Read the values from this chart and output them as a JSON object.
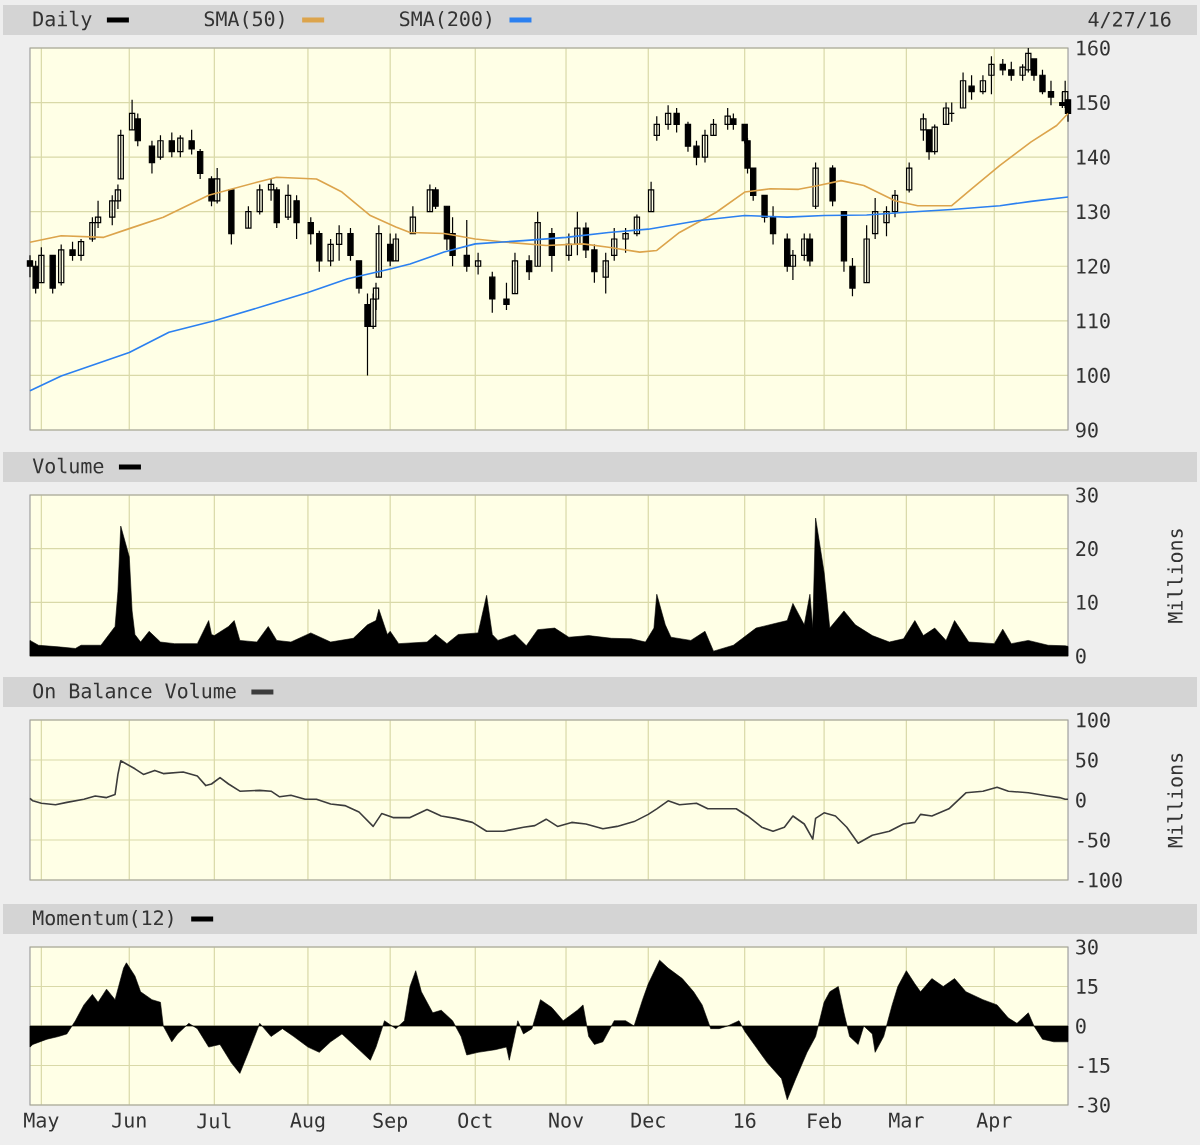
{
  "chart_data": [
    {
      "type": "candlestick",
      "annotations": [
        "4/27/16"
      ],
      "xlim": [
        "2015-04-27",
        "2016-04-27"
      ],
      "xticks": [
        {
          "value": "2015-05-01",
          "label": null
        },
        {
          "value": "2015-06-01",
          "label": null
        },
        {
          "value": "2015-07-01",
          "label": null
        },
        {
          "value": "2015-08-03",
          "label": null
        },
        {
          "value": "2015-09-01",
          "label": null
        },
        {
          "value": "2015-10-01",
          "label": null
        },
        {
          "value": "2015-11-02",
          "label": null
        },
        {
          "value": "2015-12-01",
          "label": null
        },
        {
          "value": "2016-01-04",
          "label": null
        },
        {
          "value": "2016-02-01",
          "label": null
        },
        {
          "value": "2016-03-01",
          "label": null
        },
        {
          "value": "2016-04-01",
          "label": null
        }
      ],
      "ylim": [
        90,
        160
      ],
      "yticks": [
        90,
        100,
        110,
        120,
        130,
        140,
        150,
        160
      ],
      "grid": true,
      "legend": "top left",
      "tick_labels": "y",
      "series": [
        {
          "name": "Daily",
          "type": "candlestick",
          "color": "#000000",
          "x": [
            "2015-04-27",
            "2015-04-29",
            "2015-05-01",
            "2015-05-05",
            "2015-05-08",
            "2015-05-12",
            "2015-05-15",
            "2015-05-19",
            "2015-05-21",
            "2015-05-26",
            "2015-05-28",
            "2015-05-29",
            "2015-06-02",
            "2015-06-04",
            "2015-06-09",
            "2015-06-12",
            "2015-06-16",
            "2015-06-19",
            "2015-06-23",
            "2015-06-26",
            "2015-06-30",
            "2015-07-02",
            "2015-07-07",
            "2015-07-13",
            "2015-07-17",
            "2015-07-21",
            "2015-07-23",
            "2015-07-27",
            "2015-07-30",
            "2015-08-04",
            "2015-08-07",
            "2015-08-11",
            "2015-08-14",
            "2015-08-18",
            "2015-08-21",
            "2015-08-24",
            "2015-08-26",
            "2015-08-27",
            "2015-08-28",
            "2015-09-01",
            "2015-09-03",
            "2015-09-09",
            "2015-09-15",
            "2015-09-17",
            "2015-09-21",
            "2015-09-23",
            "2015-09-28",
            "2015-10-02",
            "2015-10-07",
            "2015-10-12",
            "2015-10-15",
            "2015-10-20",
            "2015-10-23",
            "2015-10-28",
            "2015-11-03",
            "2015-11-06",
            "2015-11-09",
            "2015-11-12",
            "2015-11-16",
            "2015-11-19",
            "2015-11-23",
            "2015-11-27",
            "2015-12-02",
            "2015-12-04",
            "2015-12-08",
            "2015-12-11",
            "2015-12-15",
            "2015-12-18",
            "2015-12-21",
            "2015-12-24",
            "2015-12-29",
            "2015-12-31",
            "2016-01-04",
            "2016-01-05",
            "2016-01-07",
            "2016-01-11",
            "2016-01-14",
            "2016-01-19",
            "2016-01-21",
            "2016-01-25",
            "2016-01-27",
            "2016-01-29",
            "2016-02-04",
            "2016-02-08",
            "2016-02-11",
            "2016-02-16",
            "2016-02-19",
            "2016-02-23",
            "2016-02-26",
            "2016-03-02",
            "2016-03-07",
            "2016-03-09",
            "2016-03-11",
            "2016-03-15",
            "2016-03-17",
            "2016-03-21",
            "2016-03-24",
            "2016-03-28",
            "2016-03-31",
            "2016-04-04",
            "2016-04-07",
            "2016-04-11",
            "2016-04-13",
            "2016-04-15",
            "2016-04-18",
            "2016-04-21",
            "2016-04-25",
            "2016-04-26",
            "2016-04-27"
          ],
          "ohlc": [
            [
              121,
              122,
              118,
              120
            ],
            [
              120,
              121,
              115,
              116
            ],
            [
              117,
              123.5,
              117,
              122
            ],
            [
              122,
              122,
              115,
              116
            ],
            [
              117,
              124,
              116.5,
              123
            ],
            [
              123,
              124.5,
              121,
              122
            ],
            [
              122,
              125,
              121,
              124.5
            ],
            [
              125,
              129,
              124.5,
              128
            ],
            [
              128,
              132,
              127,
              129
            ],
            [
              129,
              133,
              127.5,
              132
            ],
            [
              132,
              135,
              130.5,
              134
            ],
            [
              136,
              145,
              136,
              144
            ],
            [
              145,
              150.5,
              145,
              148
            ],
            [
              147,
              148,
              142,
              143
            ],
            [
              142,
              143,
              137,
              139
            ],
            [
              140,
              144,
              139.5,
              143
            ],
            [
              143,
              144.5,
              140,
              141
            ],
            [
              141,
              144,
              140,
              143.5
            ],
            [
              143,
              145,
              140.5,
              141.5
            ],
            [
              141,
              141.5,
              136,
              137
            ],
            [
              136,
              136.5,
              131,
              132
            ],
            [
              132,
              138,
              131.5,
              136
            ],
            [
              134,
              134,
              124,
              126
            ],
            [
              127,
              131,
              127,
              130
            ],
            [
              130,
              135,
              129.5,
              134
            ],
            [
              134,
              136,
              132,
              135
            ],
            [
              134,
              134.5,
              127,
              128
            ],
            [
              129,
              135,
              128.5,
              133
            ],
            [
              132,
              133,
              125,
              128
            ],
            [
              128,
              129,
              124,
              126
            ],
            [
              126,
              126.5,
              119,
              121
            ],
            [
              121,
              125,
              120,
              124
            ],
            [
              124,
              127.5,
              121,
              126
            ],
            [
              126,
              127,
              121,
              122
            ],
            [
              121,
              121,
              115,
              116
            ],
            [
              113,
              115,
              100,
              109
            ],
            [
              109,
              115,
              108.5,
              114
            ],
            [
              114,
              117,
              112,
              116
            ],
            [
              118,
              127.5,
              118,
              126
            ],
            [
              124,
              126,
              120,
              121
            ],
            [
              121,
              126,
              121,
              125
            ],
            [
              126,
              131,
              126,
              129
            ],
            [
              130,
              135,
              130,
              134
            ],
            [
              134,
              134.5,
              130.5,
              131
            ],
            [
              131,
              131,
              123,
              125
            ],
            [
              126,
              129,
              120,
              122
            ],
            [
              122,
              128.5,
              119,
              120
            ],
            [
              120,
              122.5,
              118.5,
              121
            ],
            [
              118,
              119,
              111.5,
              114
            ],
            [
              114,
              117,
              112,
              113
            ],
            [
              115,
              122.5,
              115,
              121
            ],
            [
              121,
              122,
              117.5,
              119
            ],
            [
              120,
              130,
              120,
              128
            ],
            [
              126,
              127,
              119,
              122
            ],
            [
              122,
              126,
              121,
              124
            ],
            [
              124,
              130,
              122,
              127
            ],
            [
              127,
              128,
              121.5,
              123
            ],
            [
              123,
              124,
              117,
              119
            ],
            [
              118,
              122.5,
              115,
              121
            ],
            [
              122,
              127,
              121,
              125
            ],
            [
              125,
              127,
              122.5,
              126
            ],
            [
              126,
              129.5,
              125.5,
              129
            ],
            [
              130,
              135.5,
              130,
              134
            ],
            [
              144,
              147.5,
              143,
              146
            ],
            [
              146,
              149.5,
              145,
              148
            ],
            [
              148,
              149,
              144.5,
              146
            ],
            [
              146,
              146.5,
              141,
              142
            ],
            [
              142,
              143,
              138.5,
              140
            ],
            [
              140,
              145,
              139,
              144
            ],
            [
              144,
              147,
              144,
              146
            ],
            [
              146,
              149,
              145,
              147.5
            ],
            [
              147,
              148,
              145,
              146
            ],
            [
              146,
              146,
              142.5,
              143
            ],
            [
              143,
              143.5,
              137,
              138
            ],
            [
              138,
              138,
              132,
              133
            ],
            [
              133,
              133,
              128,
              129
            ],
            [
              129,
              131,
              124,
              126
            ],
            [
              125,
              126,
              119,
              120
            ],
            [
              120,
              123,
              117.5,
              122
            ],
            [
              122,
              126,
              121,
              125
            ],
            [
              125,
              126,
              120,
              121
            ],
            [
              131,
              139,
              130.5,
              138
            ],
            [
              138,
              138.5,
              131,
              132
            ],
            [
              130,
              130,
              119,
              121
            ],
            [
              120,
              121.5,
              114.5,
              116
            ],
            [
              117,
              127.5,
              117,
              125
            ],
            [
              126,
              132.5,
              125,
              130
            ],
            [
              128,
              131,
              125.5,
              130
            ],
            [
              130,
              134,
              129,
              133
            ],
            [
              134,
              139,
              133.5,
              138
            ],
            [
              145,
              148,
              143,
              147
            ],
            [
              145,
              145,
              139.5,
              141
            ],
            [
              141,
              146,
              140.5,
              145.5
            ],
            [
              146,
              150,
              146,
              149
            ],
            [
              148,
              150,
              146.5,
              148
            ],
            [
              149,
              155.5,
              149,
              154
            ],
            [
              153,
              155,
              150.5,
              152
            ],
            [
              152,
              155,
              151.5,
              154
            ],
            [
              155,
              158.5,
              151.5,
              157
            ],
            [
              157,
              158,
              155,
              156
            ],
            [
              156,
              157.5,
              154,
              155
            ],
            [
              155,
              157,
              154,
              156.5
            ],
            [
              156,
              160,
              155.5,
              159
            ],
            [
              158,
              158,
              154,
              155
            ],
            [
              155,
              156,
              151.5,
              152
            ],
            [
              152,
              154,
              149.5,
              151
            ],
            [
              150,
              152,
              149,
              149.5
            ],
            [
              150,
              154,
              149,
              152
            ],
            [
              150.5,
              150.5,
              146.5,
              148
            ]
          ]
        },
        {
          "name": "SMA(50)",
          "type": "line",
          "color": "#dca44c",
          "x": [
            "2015-04-27",
            "2015-05-08",
            "2015-05-23",
            "2015-06-01",
            "2015-06-13",
            "2015-06-29",
            "2015-07-16",
            "2015-07-23",
            "2015-08-06",
            "2015-08-15",
            "2015-08-25",
            "2015-09-03",
            "2015-09-08",
            "2015-09-20",
            "2015-10-01",
            "2015-10-12",
            "2015-10-26",
            "2015-11-08",
            "2015-11-17",
            "2015-11-28",
            "2015-12-04",
            "2015-12-12",
            "2015-12-25",
            "2016-01-04",
            "2016-01-13",
            "2016-01-23",
            "2016-01-30",
            "2016-02-07",
            "2016-02-15",
            "2016-02-26",
            "2016-03-05",
            "2016-03-17",
            "2016-03-24",
            "2016-04-03",
            "2016-04-14",
            "2016-04-23",
            "2016-04-27"
          ],
          "values": [
            124.4,
            125.6,
            125.3,
            126.9,
            129,
            133,
            135.4,
            136.3,
            136,
            133.6,
            129.3,
            127.2,
            126.2,
            126,
            125,
            124.4,
            123.8,
            124.1,
            123.5,
            122.6,
            122.9,
            126.2,
            129.9,
            133.6,
            134.2,
            134.1,
            134.8,
            135.7,
            134.8,
            132,
            131.1,
            131.1,
            134.2,
            138.5,
            142.8,
            145.8,
            148
          ]
        },
        {
          "name": "SMA(200)",
          "type": "line",
          "color": "#2b80f0",
          "x": [
            "2015-04-27",
            "2015-05-08",
            "2015-06-01",
            "2015-06-15",
            "2015-07-01",
            "2015-07-19",
            "2015-08-03",
            "2015-08-17",
            "2015-09-01",
            "2015-09-08",
            "2015-09-20",
            "2015-10-01",
            "2015-10-18",
            "2015-11-02",
            "2015-11-17",
            "2015-12-01",
            "2015-12-19",
            "2016-01-04",
            "2016-01-19",
            "2016-02-01",
            "2016-02-16",
            "2016-03-01",
            "2016-03-17",
            "2016-04-03",
            "2016-04-14",
            "2016-04-27"
          ],
          "values": [
            97.2,
            99.9,
            104.2,
            107.9,
            110,
            112.8,
            115.2,
            117.7,
            119.5,
            120.4,
            122.6,
            124.1,
            124.7,
            125.3,
            126.2,
            126.8,
            128.4,
            129.3,
            129,
            129.3,
            129.4,
            129.9,
            130.4,
            131.1,
            131.9,
            132.7
          ]
        }
      ]
    },
    {
      "type": "area",
      "xlim": [
        "2015-04-27",
        "2016-04-27"
      ],
      "xticks": [
        {
          "value": "2015-05-01",
          "label": null
        },
        {
          "value": "2015-06-01",
          "label": null
        },
        {
          "value": "2015-07-01",
          "label": null
        },
        {
          "value": "2015-08-03",
          "label": null
        },
        {
          "value": "2015-09-01",
          "label": null
        },
        {
          "value": "2015-10-01",
          "label": null
        },
        {
          "value": "2015-11-02",
          "label": null
        },
        {
          "value": "2015-12-01",
          "label": null
        },
        {
          "value": "2016-01-04",
          "label": null
        },
        {
          "value": "2016-02-01",
          "label": null
        },
        {
          "value": "2016-03-01",
          "label": null
        },
        {
          "value": "2016-04-01",
          "label": null
        }
      ],
      "ylim": [
        0,
        30
      ],
      "yticks": [
        0,
        10,
        20,
        30
      ],
      "ylabel": "Millions",
      "grid": true,
      "legend": "top left",
      "tick_labels": "y",
      "series": [
        {
          "name": "Volume",
          "color": "#000000",
          "x": [
            "2015-04-27",
            "2015-04-30",
            "2015-05-07",
            "2015-05-13",
            "2015-05-15",
            "2015-05-22",
            "2015-05-27",
            "2015-05-28",
            "2015-05-29",
            "2015-06-01",
            "2015-06-02",
            "2015-06-03",
            "2015-06-05",
            "2015-06-08",
            "2015-06-12",
            "2015-06-17",
            "2015-06-25",
            "2015-06-29",
            "2015-06-30",
            "2015-07-01",
            "2015-07-06",
            "2015-07-08",
            "2015-07-10",
            "2015-07-16",
            "2015-07-20",
            "2015-07-23",
            "2015-07-28",
            "2015-08-04",
            "2015-08-11",
            "2015-08-19",
            "2015-08-24",
            "2015-08-27",
            "2015-08-28",
            "2015-08-31",
            "2015-09-01",
            "2015-09-04",
            "2015-09-14",
            "2015-09-17",
            "2015-09-21",
            "2015-09-25",
            "2015-10-02",
            "2015-10-05",
            "2015-10-07",
            "2015-10-09",
            "2015-10-15",
            "2015-10-19",
            "2015-10-23",
            "2015-10-29",
            "2015-11-03",
            "2015-11-10",
            "2015-11-18",
            "2015-11-25",
            "2015-11-30",
            "2015-12-03",
            "2015-12-04",
            "2015-12-07",
            "2015-12-09",
            "2015-12-16",
            "2015-12-21",
            "2015-12-24",
            "2015-12-31",
            "2016-01-08",
            "2016-01-15",
            "2016-01-19",
            "2016-01-21",
            "2016-01-25",
            "2016-01-27",
            "2016-01-28",
            "2016-01-29",
            "2016-02-01",
            "2016-02-03",
            "2016-02-08",
            "2016-02-12",
            "2016-02-18",
            "2016-02-24",
            "2016-02-29",
            "2016-03-04",
            "2016-03-07",
            "2016-03-11",
            "2016-03-15",
            "2016-03-18",
            "2016-03-23",
            "2016-04-01",
            "2016-04-04",
            "2016-04-07",
            "2016-04-13",
            "2016-04-20",
            "2016-04-26",
            "2016-04-27"
          ],
          "values": [
            2.9,
            2.0,
            1.7,
            1.4,
            2.0,
            2.0,
            5.5,
            12,
            24.2,
            18.5,
            8.4,
            4,
            2.6,
            4.6,
            2.6,
            2.3,
            2.3,
            6.6,
            4,
            3.8,
            5.5,
            6.6,
            2.9,
            2.6,
            5.5,
            2.9,
            2.6,
            4.3,
            2.6,
            3.3,
            5.8,
            6.6,
            8.7,
            4,
            4.6,
            2.3,
            2.6,
            4,
            2.3,
            4,
            4.3,
            11.3,
            4,
            2.9,
            4,
            1.9,
            4.9,
            5.2,
            3.5,
            3.8,
            3.3,
            3.2,
            2.6,
            5.2,
            11.5,
            5.8,
            3.5,
            2.9,
            4.6,
            0.9,
            2,
            5.2,
            6.1,
            6.6,
            9.8,
            5.8,
            11.5,
            5.2,
            25.7,
            15.6,
            5.2,
            8.4,
            5.8,
            3.8,
            2.6,
            3.2,
            6.6,
            3.8,
            5.2,
            2.9,
            6.6,
            2.6,
            2.3,
            5,
            2.3,
            2.9,
            2,
            1.9,
            1.8
          ]
        }
      ]
    },
    {
      "type": "line",
      "xlim": [
        "2015-04-27",
        "2016-04-27"
      ],
      "xticks": [
        {
          "value": "2015-05-01",
          "label": null
        },
        {
          "value": "2015-06-01",
          "label": null
        },
        {
          "value": "2015-07-01",
          "label": null
        },
        {
          "value": "2015-08-03",
          "label": null
        },
        {
          "value": "2015-09-01",
          "label": null
        },
        {
          "value": "2015-10-01",
          "label": null
        },
        {
          "value": "2015-11-02",
          "label": null
        },
        {
          "value": "2015-12-01",
          "label": null
        },
        {
          "value": "2016-01-04",
          "label": null
        },
        {
          "value": "2016-02-01",
          "label": null
        },
        {
          "value": "2016-03-01",
          "label": null
        },
        {
          "value": "2016-04-01",
          "label": null
        }
      ],
      "ylim": [
        -100,
        100
      ],
      "yticks": [
        -100,
        -50,
        0,
        50,
        100
      ],
      "ylabel": "Millions",
      "grid": true,
      "legend": "top left",
      "tick_labels": "y",
      "series": [
        {
          "name": "On Balance Volume",
          "color": "#3c3c3c",
          "x": [
            "2015-04-27",
            "2015-04-28",
            "2015-05-01",
            "2015-05-06",
            "2015-05-10",
            "2015-05-16",
            "2015-05-20",
            "2015-05-24",
            "2015-05-27",
            "2015-05-28",
            "2015-05-29",
            "2015-06-03",
            "2015-06-06",
            "2015-06-10",
            "2015-06-13",
            "2015-06-20",
            "2015-06-25",
            "2015-06-28",
            "2015-06-30",
            "2015-07-03",
            "2015-07-06",
            "2015-07-10",
            "2015-07-17",
            "2015-07-21",
            "2015-07-24",
            "2015-07-28",
            "2015-08-02",
            "2015-08-06",
            "2015-08-11",
            "2015-08-16",
            "2015-08-21",
            "2015-08-26",
            "2015-08-29",
            "2015-09-02",
            "2015-09-08",
            "2015-09-14",
            "2015-09-19",
            "2015-09-24",
            "2015-09-30",
            "2015-10-05",
            "2015-10-11",
            "2015-10-18",
            "2015-10-22",
            "2015-10-26",
            "2015-10-30",
            "2015-11-04",
            "2015-11-09",
            "2015-11-15",
            "2015-11-20",
            "2015-11-26",
            "2015-12-01",
            "2015-12-04",
            "2015-12-08",
            "2015-12-12",
            "2015-12-18",
            "2015-12-22",
            "2015-12-28",
            "2016-01-01",
            "2016-01-05",
            "2016-01-10",
            "2016-01-14",
            "2016-01-18",
            "2016-01-21",
            "2016-01-25",
            "2016-01-28",
            "2016-01-29",
            "2016-02-01",
            "2016-02-05",
            "2016-02-09",
            "2016-02-13",
            "2016-02-18",
            "2016-02-24",
            "2016-02-29",
            "2016-03-04",
            "2016-03-06",
            "2016-03-10",
            "2016-03-16",
            "2016-03-22",
            "2016-03-28",
            "2016-04-02",
            "2016-04-06",
            "2016-04-13",
            "2016-04-20",
            "2016-04-24",
            "2016-04-26",
            "2016-04-27"
          ],
          "values": [
            2,
            -1,
            -4,
            -6,
            -3,
            1,
            5,
            3,
            7,
            32,
            49,
            39,
            32,
            37,
            33,
            35,
            30,
            18,
            20,
            28,
            20,
            11,
            12,
            11,
            4,
            6,
            1,
            1,
            -5,
            -7,
            -15,
            -33,
            -17,
            -22,
            -22,
            -12,
            -20,
            -23,
            -28,
            -39,
            -39,
            -34,
            -32,
            -24,
            -33,
            -28,
            -30,
            -36,
            -33,
            -27,
            -18,
            -11,
            -1,
            -6,
            -4,
            -11,
            -11,
            -11,
            -20,
            -34,
            -39,
            -34,
            -20,
            -30,
            -49,
            -23,
            -16,
            -20,
            -34,
            -54,
            -44,
            -39,
            -30,
            -28,
            -18,
            -20,
            -11,
            9,
            11,
            16,
            11,
            9,
            5,
            3,
            1,
            1
          ]
        }
      ]
    },
    {
      "type": "area",
      "xlim": [
        "2015-04-27",
        "2016-04-27"
      ],
      "xticks": [
        {
          "value": "2015-05-01",
          "label": "May"
        },
        {
          "value": "2015-06-01",
          "label": "Jun"
        },
        {
          "value": "2015-07-01",
          "label": "Jul"
        },
        {
          "value": "2015-08-03",
          "label": "Aug"
        },
        {
          "value": "2015-09-01",
          "label": "Sep"
        },
        {
          "value": "2015-10-01",
          "label": "Oct"
        },
        {
          "value": "2015-11-02",
          "label": "Nov"
        },
        {
          "value": "2015-12-01",
          "label": "Dec"
        },
        {
          "value": "2016-01-04",
          "label": "16"
        },
        {
          "value": "2016-02-01",
          "label": "Feb"
        },
        {
          "value": "2016-03-01",
          "label": "Mar"
        },
        {
          "value": "2016-04-01",
          "label": "Apr"
        }
      ],
      "ylim": [
        -30,
        30
      ],
      "yticks": [
        -30,
        -15,
        0,
        15,
        30
      ],
      "grid": true,
      "legend": "top left",
      "series": [
        {
          "name": "Momentum(12)",
          "color": "#000000",
          "x": [
            "2015-04-27",
            "2015-04-28",
            "2015-05-03",
            "2015-05-07",
            "2015-05-10",
            "2015-05-13",
            "2015-05-16",
            "2015-05-19",
            "2015-05-21",
            "2015-05-24",
            "2015-05-27",
            "2015-05-30",
            "2015-05-31",
            "2015-06-03",
            "2015-06-05",
            "2015-06-09",
            "2015-06-12",
            "2015-06-13",
            "2015-06-16",
            "2015-06-18",
            "2015-06-22",
            "2015-06-25",
            "2015-06-29",
            "2015-07-03",
            "2015-07-07",
            "2015-07-10",
            "2015-07-13",
            "2015-07-17",
            "2015-07-21",
            "2015-07-25",
            "2015-07-29",
            "2015-08-03",
            "2015-08-07",
            "2015-08-11",
            "2015-08-15",
            "2015-08-18",
            "2015-08-22",
            "2015-08-25",
            "2015-08-27",
            "2015-08-30",
            "2015-09-03",
            "2015-09-06",
            "2015-09-08",
            "2015-09-10",
            "2015-09-12",
            "2015-09-16",
            "2015-09-19",
            "2015-09-23",
            "2015-09-26",
            "2015-09-28",
            "2015-10-02",
            "2015-10-08",
            "2015-10-12",
            "2015-10-13",
            "2015-10-16",
            "2015-10-18",
            "2015-10-21",
            "2015-10-24",
            "2015-10-28",
            "2015-11-01",
            "2015-11-06",
            "2015-11-08",
            "2015-11-10",
            "2015-11-12",
            "2015-11-15",
            "2015-11-19",
            "2015-11-23",
            "2015-11-26",
            "2015-11-29",
            "2015-12-01",
            "2015-12-05",
            "2015-12-08",
            "2015-12-13",
            "2015-12-17",
            "2015-12-20",
            "2015-12-23",
            "2015-12-26",
            "2015-12-29",
            "2016-01-02",
            "2016-01-04",
            "2016-01-08",
            "2016-01-12",
            "2016-01-17",
            "2016-01-19",
            "2016-01-22",
            "2016-01-26",
            "2016-01-29",
            "2016-02-01",
            "2016-02-03",
            "2016-02-06",
            "2016-02-08",
            "2016-02-10",
            "2016-02-13",
            "2016-02-15",
            "2016-02-18",
            "2016-02-19",
            "2016-02-22",
            "2016-02-25",
            "2016-02-27",
            "2016-03-01",
            "2016-03-04",
            "2016-03-06",
            "2016-03-10",
            "2016-03-14",
            "2016-03-18",
            "2016-03-22",
            "2016-03-24",
            "2016-03-28",
            "2016-04-02",
            "2016-04-06",
            "2016-04-09",
            "2016-04-13",
            "2016-04-15",
            "2016-04-18",
            "2016-04-22",
            "2016-04-27"
          ],
          "values": [
            -8,
            -7,
            -5,
            -4,
            -3,
            2,
            8,
            12,
            9,
            14,
            10,
            22,
            24,
            19,
            13,
            10,
            9,
            0,
            -6,
            -3,
            1,
            -1,
            -8,
            -7,
            -14,
            -18,
            -10,
            1,
            -4,
            -1,
            -4,
            -8,
            -10,
            -6,
            -3,
            -6,
            -10,
            -13,
            -8,
            2,
            -1,
            2,
            15,
            21,
            13,
            5,
            6,
            2,
            -4,
            -11,
            -10,
            -9,
            -8,
            -13,
            2,
            -3,
            -1,
            10,
            7,
            2,
            6,
            8,
            -4,
            -7,
            -6,
            2,
            2,
            0,
            10,
            16,
            25,
            22,
            18,
            13,
            8,
            -1,
            -1,
            0,
            2,
            -2,
            -8,
            -14,
            -20,
            -28,
            -20,
            -10,
            -4,
            9,
            13,
            15,
            5,
            -4,
            -7,
            0,
            -3,
            -10,
            -4,
            8,
            15,
            21,
            16,
            13,
            18,
            15,
            18,
            13,
            12,
            10,
            8,
            3,
            1,
            5,
            0,
            -5,
            -6,
            -6
          ]
        }
      ]
    }
  ]
}
